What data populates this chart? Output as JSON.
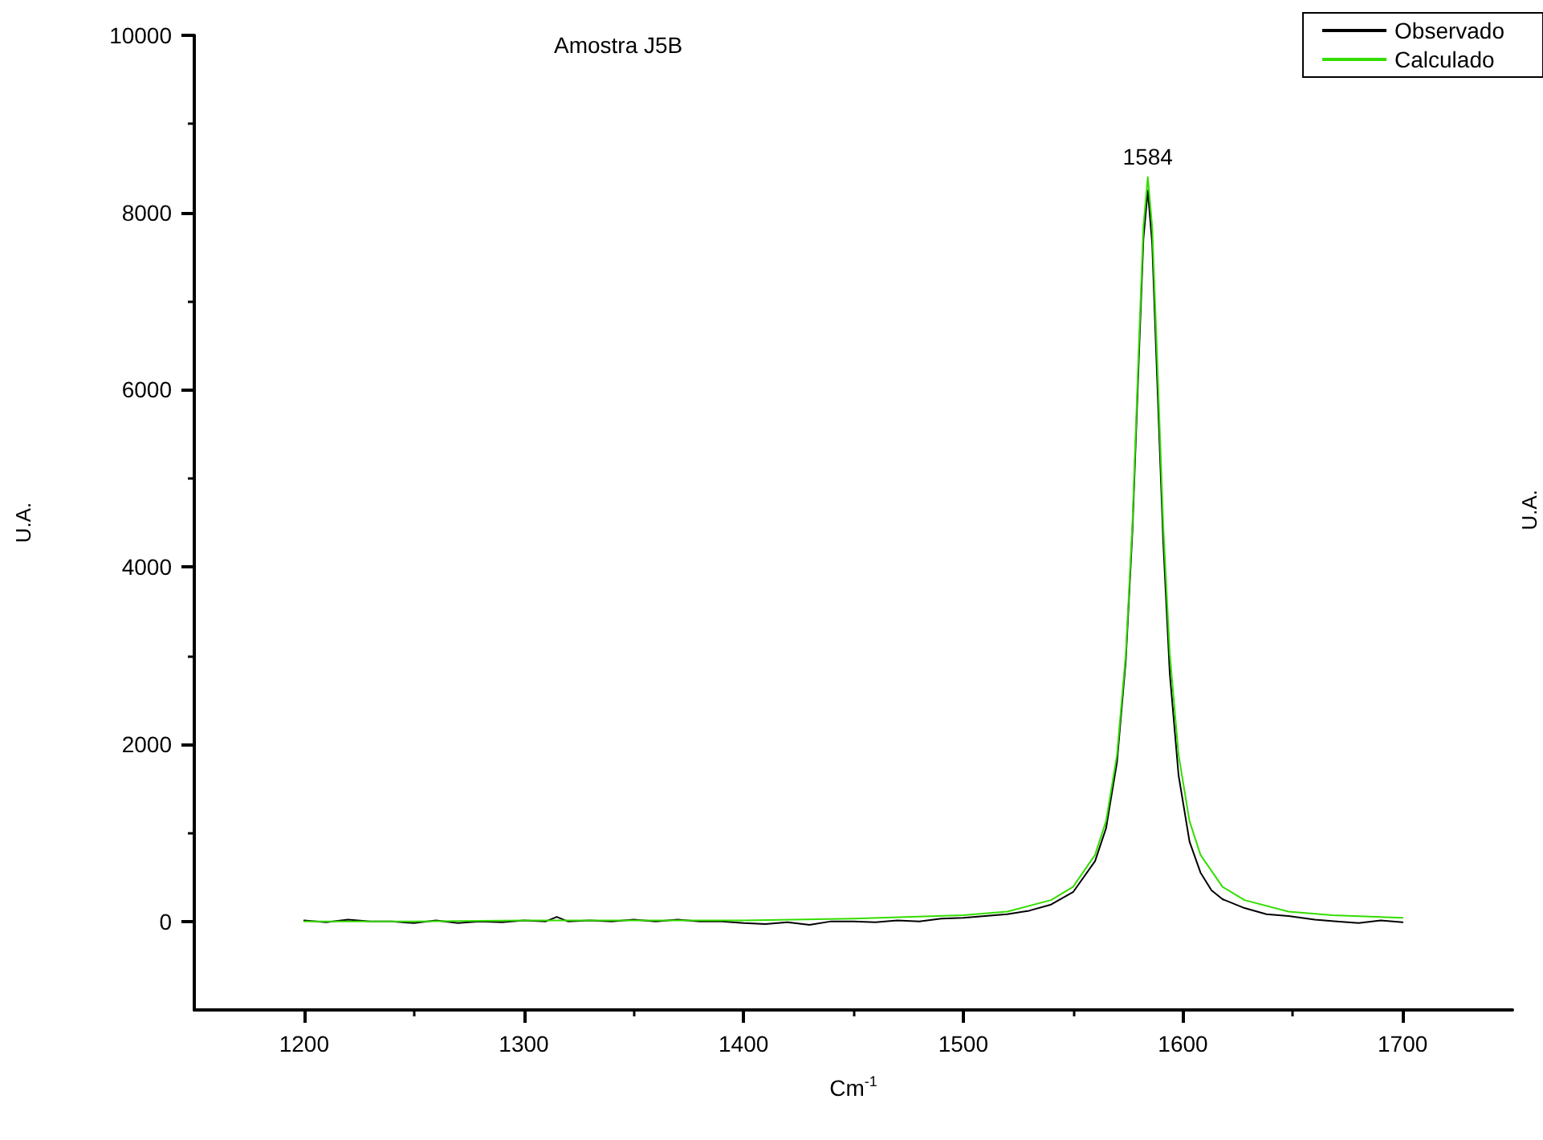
{
  "chart_data": {
    "type": "line",
    "title": "Amostra J5B",
    "xlabel": "Cm$^{-1}$",
    "ylabel": "U.A.",
    "y2label": "U.A.",
    "xlim": [
      1150,
      1750
    ],
    "xticks": [
      1200,
      1300,
      1400,
      1500,
      1600,
      1700
    ],
    "ylim": [
      -1000,
      10000
    ],
    "yticks": [
      0,
      2000,
      4000,
      6000,
      8000,
      10000
    ],
    "grid": false,
    "legend": "top right",
    "marker": "none",
    "line_style": "solid",
    "annotations": [
      {
        "text": "1584",
        "x": 1584,
        "y": 8400
      }
    ],
    "series": [
      {
        "name": "Observado",
        "color": "#000000",
        "x": [
          1200,
          1210,
          1220,
          1230,
          1240,
          1250,
          1260,
          1270,
          1280,
          1290,
          1300,
          1310,
          1315,
          1320,
          1330,
          1340,
          1350,
          1360,
          1370,
          1380,
          1390,
          1400,
          1410,
          1420,
          1430,
          1440,
          1450,
          1460,
          1470,
          1480,
          1490,
          1500,
          1510,
          1520,
          1530,
          1540,
          1550,
          1560,
          1565,
          1570,
          1574,
          1577,
          1580,
          1582,
          1584,
          1586,
          1588,
          1591,
          1594,
          1598,
          1603,
          1608,
          1613,
          1618,
          1628,
          1638,
          1648,
          1660,
          1670,
          1680,
          1690,
          1700
        ],
        "values": [
          10,
          -10,
          20,
          0,
          0,
          -20,
          10,
          -20,
          0,
          -10,
          10,
          0,
          50,
          0,
          10,
          0,
          20,
          0,
          20,
          0,
          0,
          -20,
          -30,
          -10,
          -40,
          0,
          0,
          -10,
          10,
          0,
          30,
          40,
          60,
          80,
          120,
          190,
          330,
          680,
          1050,
          1800,
          2950,
          4400,
          6400,
          7700,
          8250,
          7650,
          6300,
          4300,
          2800,
          1650,
          900,
          550,
          350,
          250,
          150,
          80,
          60,
          20,
          0,
          -20,
          10,
          -10
        ]
      },
      {
        "name": "Calculado",
        "color": "#33dd00",
        "x": [
          1200,
          1250,
          1300,
          1350,
          1400,
          1450,
          1500,
          1520,
          1540,
          1550,
          1560,
          1565,
          1570,
          1574,
          1577,
          1580,
          1582,
          1584,
          1586,
          1588,
          1591,
          1594,
          1598,
          1603,
          1608,
          1618,
          1628,
          1648,
          1668,
          1700
        ],
        "values": [
          0,
          0,
          10,
          10,
          10,
          30,
          70,
          110,
          240,
          390,
          750,
          1130,
          1880,
          3020,
          4490,
          6540,
          7840,
          8400,
          7840,
          6540,
          4490,
          3020,
          1880,
          1130,
          750,
          390,
          240,
          110,
          70,
          40
        ]
      }
    ]
  }
}
